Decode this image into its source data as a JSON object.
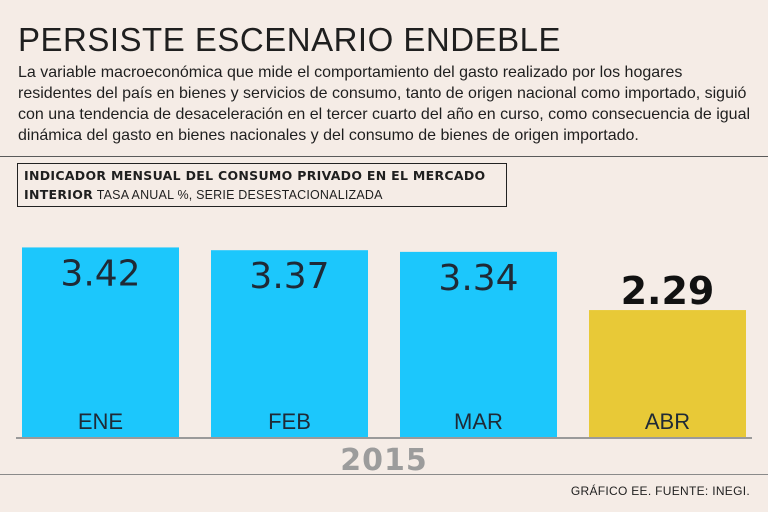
{
  "header": {
    "title": "PERSISTE ESCENARIO ENDEBLE",
    "description": "La variable macroeconómica que mide el comportamiento del gasto realizado por los hogares residentes del país en bienes y servicios de consumo, tanto de origen nacional como importado, siguió con una tendencia de desaceleración en el tercer cuarto del año en curso, como consecuencia de igual dinámica del gasto en bienes nacionales y del consumo de bienes de origen importado."
  },
  "chart_label": {
    "bold": "INDICADOR MENSUAL DEL CONSUMO PRIVADO EN EL MERCADO INTERIOR",
    "regular": "TASA ANUAL %, SERIE DESESTACIONALIZADA"
  },
  "chart_data": {
    "type": "bar",
    "categories": [
      "ENE",
      "FEB",
      "MAR",
      "ABR"
    ],
    "values": [
      3.42,
      3.37,
      3.34,
      2.29
    ],
    "value_labels": [
      "3.42",
      "3.37",
      "3.34",
      "2.29"
    ],
    "xlabel": "2015",
    "ylim": [
      0,
      3.5
    ],
    "colors": [
      "#1cc7fc",
      "#1cc7fc",
      "#1cc7fc",
      "#e8c937"
    ],
    "highlight_index": 3,
    "grid": false
  },
  "footer": {
    "source": "GRÁFICO EE. FUENTE: INEGI."
  }
}
